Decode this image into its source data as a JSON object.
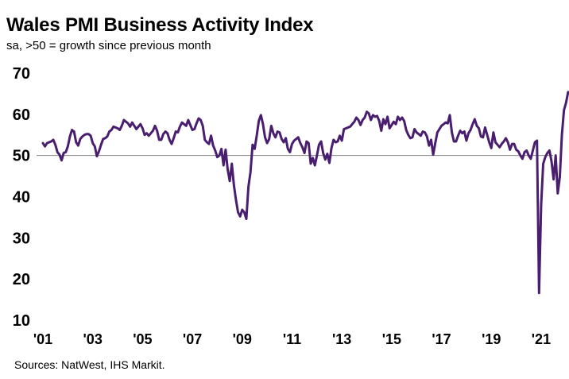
{
  "title": "Wales PMI Business Activity Index",
  "subtitle": "sa, >50 = growth  since previous month",
  "source": "Sources: NatWest, IHS Markit.",
  "chart_data": {
    "type": "line",
    "series": [
      {
        "start": "2001-01",
        "color": "#4a1e6e",
        "values": [
          53,
          52.2,
          53,
          53.2,
          53.4,
          53.8,
          52.6,
          50.8,
          50.2,
          48.8,
          50.6,
          50.8,
          52.2,
          54.6,
          56.2,
          55.8,
          53.2,
          52.4,
          54,
          54.6,
          55,
          55.2,
          55.2,
          54.8,
          53,
          52.2,
          49.8,
          51,
          52.6,
          54,
          54.2,
          54.6,
          55.8,
          56.2,
          57,
          56.8,
          56.6,
          56.2,
          57.2,
          58.6,
          58.2,
          57.8,
          57,
          58,
          57.2,
          56.4,
          57,
          57.6,
          56.6,
          55,
          55.4,
          54.8,
          55.4,
          56,
          57.2,
          56,
          53.8,
          53.8,
          55.2,
          55.8,
          55.4,
          53.8,
          52.8,
          54.2,
          55.8,
          55.6,
          57,
          58,
          57.6,
          57.2,
          58.6,
          57.4,
          56.2,
          56.4,
          57.8,
          59,
          58.6,
          57.2,
          53.8,
          53.2,
          52.8,
          54.8,
          52.4,
          51.2,
          49.6,
          50,
          51.6,
          47.6,
          51.4,
          46.6,
          43.8,
          48,
          42.8,
          39.2,
          36.2,
          35.2,
          36.8,
          36.2,
          34.6,
          42.4,
          46,
          52.6,
          51.6,
          54.8,
          58.4,
          59.8,
          57.6,
          54.4,
          53,
          54,
          57.2,
          55.4,
          54.4,
          55.8,
          55.6,
          54,
          53.2,
          54.2,
          51.6,
          50.8,
          52.8,
          53.6,
          54,
          54.4,
          53,
          52,
          50.6,
          53.4,
          53,
          48,
          49.4,
          47.6,
          50,
          52.6,
          53.4,
          50.6,
          49,
          50.4,
          48.2,
          51.8,
          53.8,
          53.2,
          53.4,
          54.8,
          53.6,
          56.4,
          56.6,
          56.8,
          57,
          57.6,
          58.2,
          59.2,
          58.6,
          57.4,
          58.6,
          59.2,
          60.6,
          60.2,
          58.6,
          59.8,
          59.4,
          59.6,
          58.4,
          56,
          58.8,
          57.6,
          59.4,
          56.6,
          57.4,
          58.2,
          57.6,
          59.4,
          58.6,
          59.2,
          58.4,
          56.2,
          55,
          54.2,
          54.4,
          56.4,
          55.6,
          55.2,
          54.8,
          55.8,
          55.6,
          54.6,
          52.4,
          53.8,
          50.2,
          53,
          55.6,
          56.4,
          57.2,
          57.6,
          58,
          57.8,
          59.8,
          55.6,
          53.4,
          53.4,
          54.8,
          56,
          55.4,
          55.8,
          53.6,
          55.4,
          56.2,
          57.6,
          58.8,
          57.2,
          56.6,
          54.6,
          54.4,
          56.8,
          55,
          53.2,
          51.8,
          55.6,
          53.2,
          52.6,
          52,
          52.8,
          53.4,
          54.2,
          53.2,
          51.4,
          52.8,
          52.8,
          51.4,
          51,
          50,
          49.2,
          50.8,
          51.2,
          50,
          49.2,
          51.2,
          53.2,
          53.6,
          16.6,
          38,
          48,
          49.6,
          50.6,
          51.2,
          48.6,
          44.2,
          50,
          40.8,
          44.8,
          55,
          61,
          62.8,
          65.4
        ]
      }
    ],
    "x_tick_labels": [
      "'01",
      "'03",
      "'05",
      "'07",
      "'09",
      "'11",
      "'13",
      "'15",
      "'17",
      "'19",
      "'21"
    ],
    "x_tick_years": [
      2001,
      2003,
      2005,
      2007,
      2009,
      2011,
      2013,
      2015,
      2017,
      2019,
      2021
    ],
    "x_range": [
      "2001-01",
      "2021-06"
    ],
    "y_ticks": [
      10,
      20,
      30,
      40,
      50,
      60,
      70
    ],
    "ylim": [
      10,
      70
    ],
    "reference_line": 50,
    "grid": false,
    "legend": "none"
  }
}
